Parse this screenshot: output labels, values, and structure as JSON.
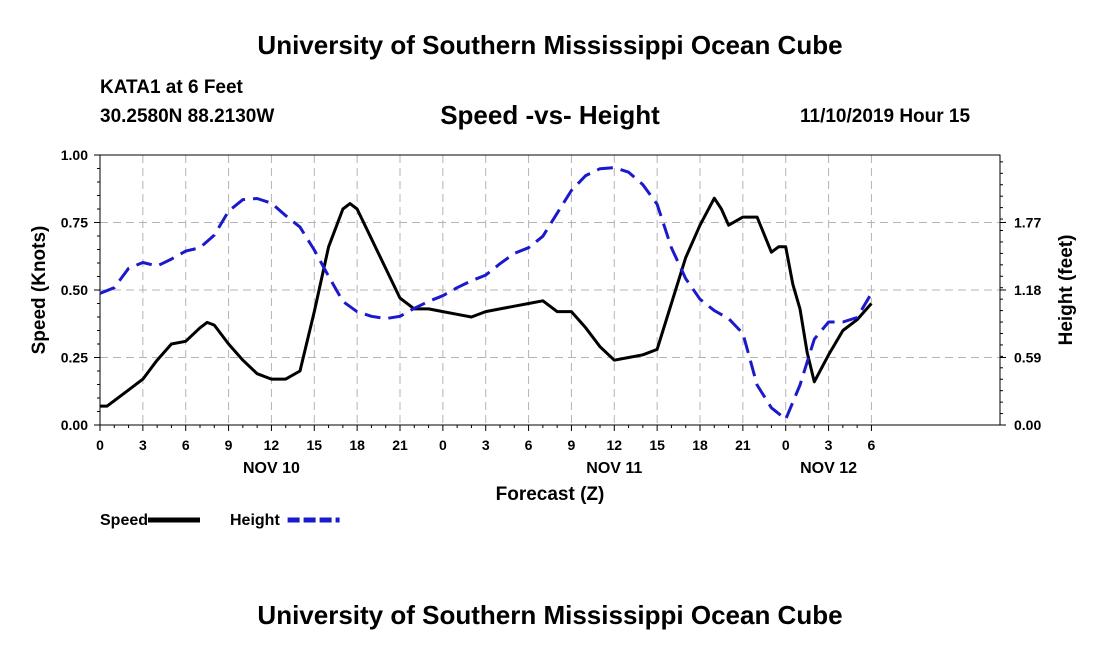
{
  "header": {
    "site_title": "University of Southern Mississippi Ocean Cube",
    "station": "KATA1 at 6 Feet",
    "coords": "30.2580N 88.2130W",
    "chart_title": "Speed -vs- Height",
    "datetime": "11/10/2019 Hour 15"
  },
  "footer": {
    "site_title": "University of Southern Mississippi Ocean Cube"
  },
  "colors": {
    "speed": "#000000",
    "height": "#1a1acc",
    "grid": "#b4b4b4"
  },
  "chart_data": {
    "type": "line",
    "title": "Speed -vs- Height",
    "xlabel": "Forecast (Z)",
    "ylabel": "Speed (Knots)",
    "y2label": "Height (feet)",
    "x_range_hours": [
      0,
      63
    ],
    "x_ticks": [
      {
        "h": 0,
        "label": "0"
      },
      {
        "h": 3,
        "label": "3"
      },
      {
        "h": 6,
        "label": "6"
      },
      {
        "h": 9,
        "label": "9"
      },
      {
        "h": 12,
        "label": "12"
      },
      {
        "h": 15,
        "label": "15"
      },
      {
        "h": 18,
        "label": "18"
      },
      {
        "h": 21,
        "label": "21"
      },
      {
        "h": 24,
        "label": "0"
      },
      {
        "h": 27,
        "label": "3"
      },
      {
        "h": 30,
        "label": "6"
      },
      {
        "h": 33,
        "label": "9"
      },
      {
        "h": 36,
        "label": "12"
      },
      {
        "h": 39,
        "label": "15"
      },
      {
        "h": 42,
        "label": "18"
      },
      {
        "h": 45,
        "label": "21"
      },
      {
        "h": 48,
        "label": "0"
      },
      {
        "h": 51,
        "label": "3"
      },
      {
        "h": 54,
        "label": "6"
      }
    ],
    "day_labels": [
      {
        "h": 12,
        "label": "NOV 10"
      },
      {
        "h": 36,
        "label": "NOV 11"
      },
      {
        "h": 51,
        "label": "NOV 12"
      }
    ],
    "ylim": [
      0,
      1.0
    ],
    "y_ticks": [
      {
        "v": 0,
        "label": "0.00"
      },
      {
        "v": 0.25,
        "label": "0.25"
      },
      {
        "v": 0.5,
        "label": "0.50"
      },
      {
        "v": 0.75,
        "label": "0.75"
      },
      {
        "v": 1.0,
        "label": "1.00"
      }
    ],
    "y2lim": [
      0,
      2.36
    ],
    "y2_ticks": [
      {
        "v": 0,
        "label": "0.00"
      },
      {
        "v": 0.59,
        "label": "0.59"
      },
      {
        "v": 1.18,
        "label": "1.18"
      },
      {
        "v": 1.77,
        "label": "1.77"
      }
    ],
    "series": [
      {
        "name": "Speed",
        "axis": "left",
        "x": [
          0,
          0.5,
          1,
          2,
          3,
          4,
          5,
          6,
          7,
          7.5,
          8,
          9,
          10,
          11,
          12,
          13,
          14,
          15,
          16,
          17,
          17.5,
          18,
          19,
          20,
          21,
          22,
          22.5,
          23,
          24,
          25,
          26,
          27,
          28,
          29,
          30,
          31,
          32,
          33,
          34,
          35,
          36,
          37,
          38,
          39,
          40,
          41,
          42,
          43,
          43.5,
          44,
          45,
          46,
          47,
          47.5,
          48,
          48.5,
          49,
          49.5,
          50,
          51,
          52,
          53,
          54
        ],
        "values": [
          0.07,
          0.07,
          0.09,
          0.13,
          0.17,
          0.24,
          0.3,
          0.31,
          0.36,
          0.38,
          0.37,
          0.3,
          0.24,
          0.19,
          0.17,
          0.17,
          0.2,
          0.42,
          0.66,
          0.8,
          0.82,
          0.8,
          0.69,
          0.58,
          0.47,
          0.43,
          0.43,
          0.43,
          0.42,
          0.41,
          0.4,
          0.42,
          0.43,
          0.44,
          0.45,
          0.46,
          0.42,
          0.42,
          0.36,
          0.29,
          0.24,
          0.25,
          0.26,
          0.28,
          0.45,
          0.62,
          0.74,
          0.84,
          0.8,
          0.74,
          0.77,
          0.77,
          0.64,
          0.66,
          0.66,
          0.52,
          0.43,
          0.27,
          0.16,
          0.26,
          0.35,
          0.39,
          0.45
        ]
      },
      {
        "name": "Height",
        "axis": "right",
        "x": [
          0,
          1,
          2,
          3,
          4,
          5,
          6,
          7,
          8,
          9,
          10,
          11,
          12,
          13,
          14,
          15,
          16,
          17,
          18,
          19,
          20,
          21,
          22,
          23,
          24,
          25,
          26,
          27,
          28,
          29,
          30,
          31,
          32,
          33,
          34,
          35,
          36,
          37,
          38,
          39,
          40,
          41,
          42,
          43,
          44,
          45,
          46,
          47,
          48,
          49,
          50,
          51,
          52,
          53,
          54
        ],
        "values": [
          1.15,
          1.2,
          1.37,
          1.42,
          1.39,
          1.45,
          1.52,
          1.55,
          1.66,
          1.87,
          1.97,
          1.98,
          1.94,
          1.83,
          1.73,
          1.53,
          1.3,
          1.08,
          0.99,
          0.95,
          0.93,
          0.95,
          1.02,
          1.08,
          1.13,
          1.2,
          1.26,
          1.31,
          1.41,
          1.5,
          1.55,
          1.65,
          1.85,
          2.05,
          2.18,
          2.24,
          2.25,
          2.21,
          2.1,
          1.93,
          1.55,
          1.28,
          1.1,
          1.0,
          0.93,
          0.8,
          0.35,
          0.15,
          0.05,
          0.35,
          0.75,
          0.9,
          0.9,
          0.94,
          1.15
        ]
      }
    ],
    "legend": [
      {
        "label": "Speed",
        "series": "Speed"
      },
      {
        "label": "Height",
        "series": "Height"
      }
    ],
    "grid": true,
    "legend_position": "bottom-left"
  }
}
